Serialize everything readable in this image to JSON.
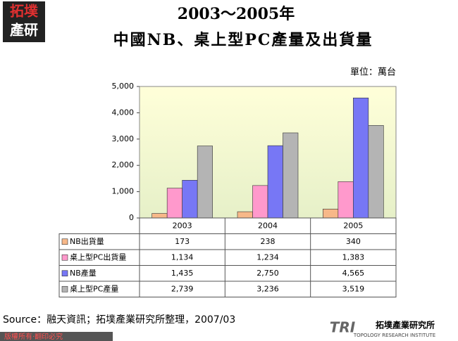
{
  "logo": {
    "top": "拓墣",
    "bottom": "產研"
  },
  "chart_data": {
    "type": "bar",
    "title": "2003～2005年",
    "subtitle": "中國NB、桌上型PC產量及出貨量",
    "unit": "單位：萬台",
    "categories": [
      "2003",
      "2004",
      "2005"
    ],
    "series": [
      {
        "name": "NB出貨量",
        "color": "#f7b889",
        "values": [
          173,
          238,
          340
        ],
        "value_labels": [
          "173",
          "238",
          "340"
        ]
      },
      {
        "name": "桌上型PC出貨量",
        "color": "#ff99cc",
        "values": [
          1134,
          1234,
          1383
        ],
        "value_labels": [
          "1,134",
          "1,234",
          "1,383"
        ]
      },
      {
        "name": "NB產量",
        "color": "#7777f5",
        "values": [
          1435,
          2750,
          4565
        ],
        "value_labels": [
          "1,435",
          "2,750",
          "4,565"
        ]
      },
      {
        "name": "桌上型PC產量",
        "color": "#b4b4b4",
        "values": [
          2739,
          3236,
          3519
        ],
        "value_labels": [
          "2,739",
          "3,236",
          "3,519"
        ]
      }
    ],
    "ylim": [
      0,
      5000
    ],
    "yticks": [
      0,
      {
        "value": 1000,
        "label": "1,000"
      },
      {
        "value": 2000,
        "label": "2,000"
      },
      {
        "value": 3000,
        "label": "3,000"
      },
      {
        "value": 4000,
        "label": "4,000"
      },
      {
        "value": 5000,
        "label": "5,000"
      }
    ],
    "data_table": true
  },
  "source": "Source：融天資訊；拓墣產業研究所整理，2007/03",
  "brand": {
    "mark": "TRI",
    "name": "拓墣產業研究所",
    "english": "TOPOLOGY RESEARCH INSTITUTE"
  },
  "footer": "版權所有‧翻印必究"
}
